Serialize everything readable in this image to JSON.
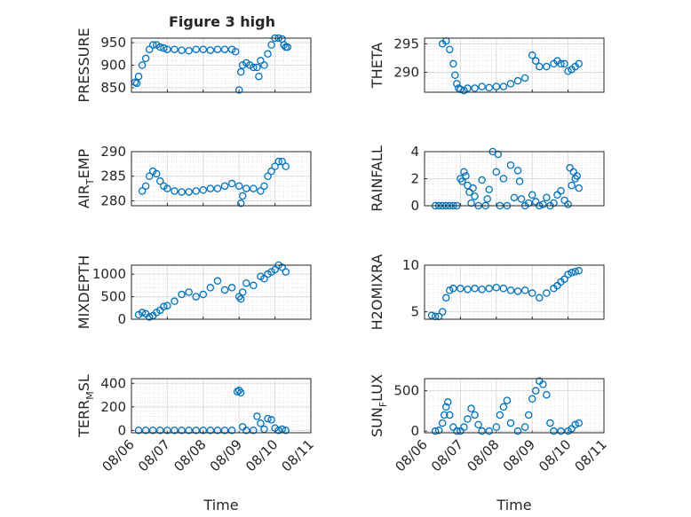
{
  "figure": {
    "title": "Figure 3 high",
    "marker_color": "#0072BD"
  },
  "chart_data": [
    {
      "type": "scatter",
      "ylabel": "PRESSURE",
      "ylabel_sub": null,
      "ylim": [
        840,
        960
      ],
      "yticks": [
        850,
        900,
        950
      ],
      "xlim": [
        0,
        5
      ],
      "x": [
        0.1,
        0.15,
        0.2,
        0.3,
        0.4,
        0.5,
        0.6,
        0.7,
        0.8,
        0.9,
        1.0,
        1.2,
        1.4,
        1.6,
        1.8,
        2.0,
        2.2,
        2.4,
        2.6,
        2.8,
        2.9,
        3.0,
        3.05,
        3.1,
        3.2,
        3.3,
        3.4,
        3.5,
        3.55,
        3.6,
        3.7,
        3.8,
        3.9,
        4.0,
        4.1,
        4.2,
        4.25,
        4.3,
        4.35
      ],
      "y": [
        862,
        860,
        875,
        900,
        915,
        935,
        945,
        945,
        940,
        938,
        935,
        935,
        933,
        932,
        935,
        935,
        933,
        935,
        935,
        935,
        930,
        845,
        885,
        900,
        905,
        900,
        895,
        895,
        875,
        910,
        900,
        925,
        945,
        960,
        960,
        958,
        945,
        940,
        940
      ]
    },
    {
      "type": "scatter",
      "ylabel": "THETA",
      "ylabel_sub": null,
      "ylim": [
        286.5,
        296
      ],
      "yticks": [
        290,
        295
      ],
      "xlim": [
        0,
        5
      ],
      "x": [
        0.5,
        0.6,
        0.7,
        0.8,
        0.85,
        0.9,
        0.95,
        1.0,
        1.1,
        1.2,
        1.4,
        1.6,
        1.8,
        2.0,
        2.2,
        2.4,
        2.6,
        2.8,
        3.0,
        3.1,
        3.2,
        3.4,
        3.6,
        3.7,
        3.8,
        3.9,
        4.0,
        4.1,
        4.2,
        4.3
      ],
      "y": [
        295,
        295.5,
        294,
        291.5,
        289.5,
        288,
        287.2,
        287,
        286.8,
        287.2,
        287.2,
        287.5,
        287.3,
        287.5,
        287.5,
        288,
        288.5,
        289,
        293,
        292,
        291,
        291,
        291.5,
        292,
        291.5,
        291.5,
        290.2,
        290.5,
        291,
        291.5
      ]
    },
    {
      "type": "scatter",
      "ylabel": "AIR",
      "ylabel_sub": "TEMP",
      "ylim": [
        279,
        290
      ],
      "yticks": [
        280,
        285,
        290
      ],
      "xlim": [
        0,
        5
      ],
      "x": [
        0.3,
        0.4,
        0.5,
        0.6,
        0.7,
        0.8,
        0.9,
        1.0,
        1.2,
        1.4,
        1.6,
        1.8,
        2.0,
        2.2,
        2.4,
        2.6,
        2.8,
        3.0,
        3.05,
        3.1,
        3.2,
        3.4,
        3.6,
        3.7,
        3.8,
        3.9,
        4.0,
        4.1,
        4.2,
        4.3
      ],
      "y": [
        282,
        283,
        285,
        286,
        285.5,
        284,
        283,
        282.5,
        282,
        281.8,
        281.8,
        282,
        282.2,
        282.5,
        282.5,
        283,
        283.5,
        283,
        279.5,
        281,
        282.5,
        282.5,
        282,
        283,
        285,
        286,
        287,
        288,
        288,
        287
      ]
    },
    {
      "type": "scatter",
      "ylabel": "RAINFALL",
      "ylabel_sub": null,
      "ylim": [
        0,
        4
      ],
      "yticks": [
        0,
        2,
        4
      ],
      "xlim": [
        0,
        5
      ],
      "x": [
        0.3,
        0.4,
        0.5,
        0.6,
        0.7,
        0.8,
        0.9,
        1.0,
        1.05,
        1.1,
        1.15,
        1.2,
        1.25,
        1.3,
        1.35,
        1.4,
        1.5,
        1.6,
        1.7,
        1.75,
        1.8,
        1.9,
        2.0,
        2.05,
        2.1,
        2.2,
        2.3,
        2.4,
        2.5,
        2.6,
        2.65,
        2.7,
        2.8,
        2.9,
        3.0,
        3.1,
        3.2,
        3.3,
        3.4,
        3.5,
        3.6,
        3.7,
        3.8,
        3.9,
        4.0,
        4.05,
        4.1,
        4.15,
        4.2,
        4.25,
        4.3
      ],
      "y": [
        0,
        0,
        0,
        0,
        0,
        0,
        0,
        2,
        1.8,
        2.5,
        2.2,
        1.5,
        1,
        0.2,
        1.3,
        0.7,
        0,
        1.9,
        0,
        0.5,
        1.2,
        4,
        2.5,
        3.8,
        0,
        2,
        0,
        3,
        0.6,
        2.6,
        1.8,
        0.5,
        0,
        0.2,
        0.8,
        0.3,
        0,
        0.1,
        0.6,
        0,
        0.2,
        0.8,
        1.1,
        0.4,
        0.1,
        2.8,
        1.5,
        2.5,
        2,
        2.2,
        1.3
      ]
    },
    {
      "type": "scatter",
      "ylabel": "MIXDEPTH",
      "ylabel_sub": null,
      "ylim": [
        0,
        1200
      ],
      "yticks": [
        0,
        500,
        1000
      ],
      "xlim": [
        0,
        5
      ],
      "x": [
        0.2,
        0.3,
        0.4,
        0.5,
        0.6,
        0.7,
        0.8,
        0.9,
        1.0,
        1.2,
        1.4,
        1.6,
        1.8,
        2.0,
        2.2,
        2.4,
        2.6,
        2.8,
        3.0,
        3.05,
        3.1,
        3.2,
        3.4,
        3.6,
        3.7,
        3.8,
        3.9,
        4.0,
        4.1,
        4.2,
        4.3
      ],
      "y": [
        100,
        150,
        120,
        50,
        80,
        150,
        200,
        280,
        300,
        400,
        550,
        600,
        500,
        550,
        700,
        850,
        650,
        700,
        500,
        450,
        600,
        800,
        750,
        950,
        900,
        1000,
        1050,
        1100,
        1200,
        1150,
        1050
      ]
    },
    {
      "type": "scatter",
      "ylabel": "H2OMIXRA",
      "ylabel_sub": null,
      "ylim": [
        4.2,
        10
      ],
      "yticks": [
        5,
        10
      ],
      "xlim": [
        0,
        5
      ],
      "x": [
        0.2,
        0.3,
        0.4,
        0.5,
        0.6,
        0.7,
        0.8,
        1.0,
        1.2,
        1.4,
        1.6,
        1.8,
        2.0,
        2.2,
        2.4,
        2.6,
        2.8,
        3.0,
        3.2,
        3.4,
        3.6,
        3.7,
        3.8,
        3.9,
        4.0,
        4.1,
        4.2,
        4.3
      ],
      "y": [
        4.6,
        4.5,
        4.5,
        5,
        6.5,
        7.3,
        7.5,
        7.5,
        7.4,
        7.5,
        7.4,
        7.5,
        7.6,
        7.5,
        7.3,
        7.2,
        7.3,
        7.0,
        6.5,
        7.0,
        7.5,
        7.8,
        8.2,
        8.5,
        9.0,
        9.2,
        9.3,
        9.4
      ]
    },
    {
      "type": "scatter",
      "ylabel": "TERR",
      "ylabel_sub": "MSL",
      "ylim": [
        -20,
        440
      ],
      "yticks": [
        0,
        200,
        400
      ],
      "xlim": [
        0,
        5
      ],
      "x": [
        0.2,
        0.4,
        0.6,
        0.8,
        1.0,
        1.2,
        1.4,
        1.6,
        1.8,
        2.0,
        2.2,
        2.4,
        2.6,
        2.8,
        2.95,
        3.0,
        3.05,
        3.1,
        3.2,
        3.4,
        3.5,
        3.6,
        3.7,
        3.8,
        3.9,
        4.0,
        4.1,
        4.2,
        4.3
      ],
      "y": [
        0,
        0,
        0,
        0,
        0,
        0,
        0,
        0,
        0,
        0,
        0,
        0,
        0,
        0,
        330,
        340,
        320,
        30,
        0,
        0,
        120,
        60,
        10,
        100,
        90,
        20,
        0,
        10,
        0
      ]
    },
    {
      "type": "scatter",
      "ylabel": "SUN",
      "ylabel_sub": "FLUX",
      "ylim": [
        -20,
        650
      ],
      "yticks": [
        0,
        500
      ],
      "xlim": [
        0,
        5
      ],
      "x": [
        0.3,
        0.4,
        0.5,
        0.55,
        0.6,
        0.65,
        0.7,
        0.8,
        0.9,
        1.0,
        1.1,
        1.2,
        1.3,
        1.4,
        1.5,
        1.6,
        1.8,
        2.0,
        2.1,
        2.2,
        2.3,
        2.4,
        2.6,
        2.8,
        2.9,
        3.0,
        3.1,
        3.2,
        3.3,
        3.4,
        3.5,
        3.6,
        3.8,
        4.0,
        4.1,
        4.2,
        4.3
      ],
      "y": [
        0,
        10,
        100,
        200,
        300,
        360,
        200,
        50,
        0,
        0,
        50,
        150,
        280,
        200,
        80,
        0,
        0,
        50,
        200,
        300,
        380,
        100,
        0,
        50,
        200,
        400,
        500,
        620,
        580,
        450,
        100,
        0,
        0,
        0,
        30,
        80,
        100
      ]
    }
  ],
  "x_axis": {
    "tick_labels": [
      "08/06",
      "08/07",
      "08/08",
      "08/09",
      "08/10",
      "08/11"
    ],
    "label": "Time"
  }
}
